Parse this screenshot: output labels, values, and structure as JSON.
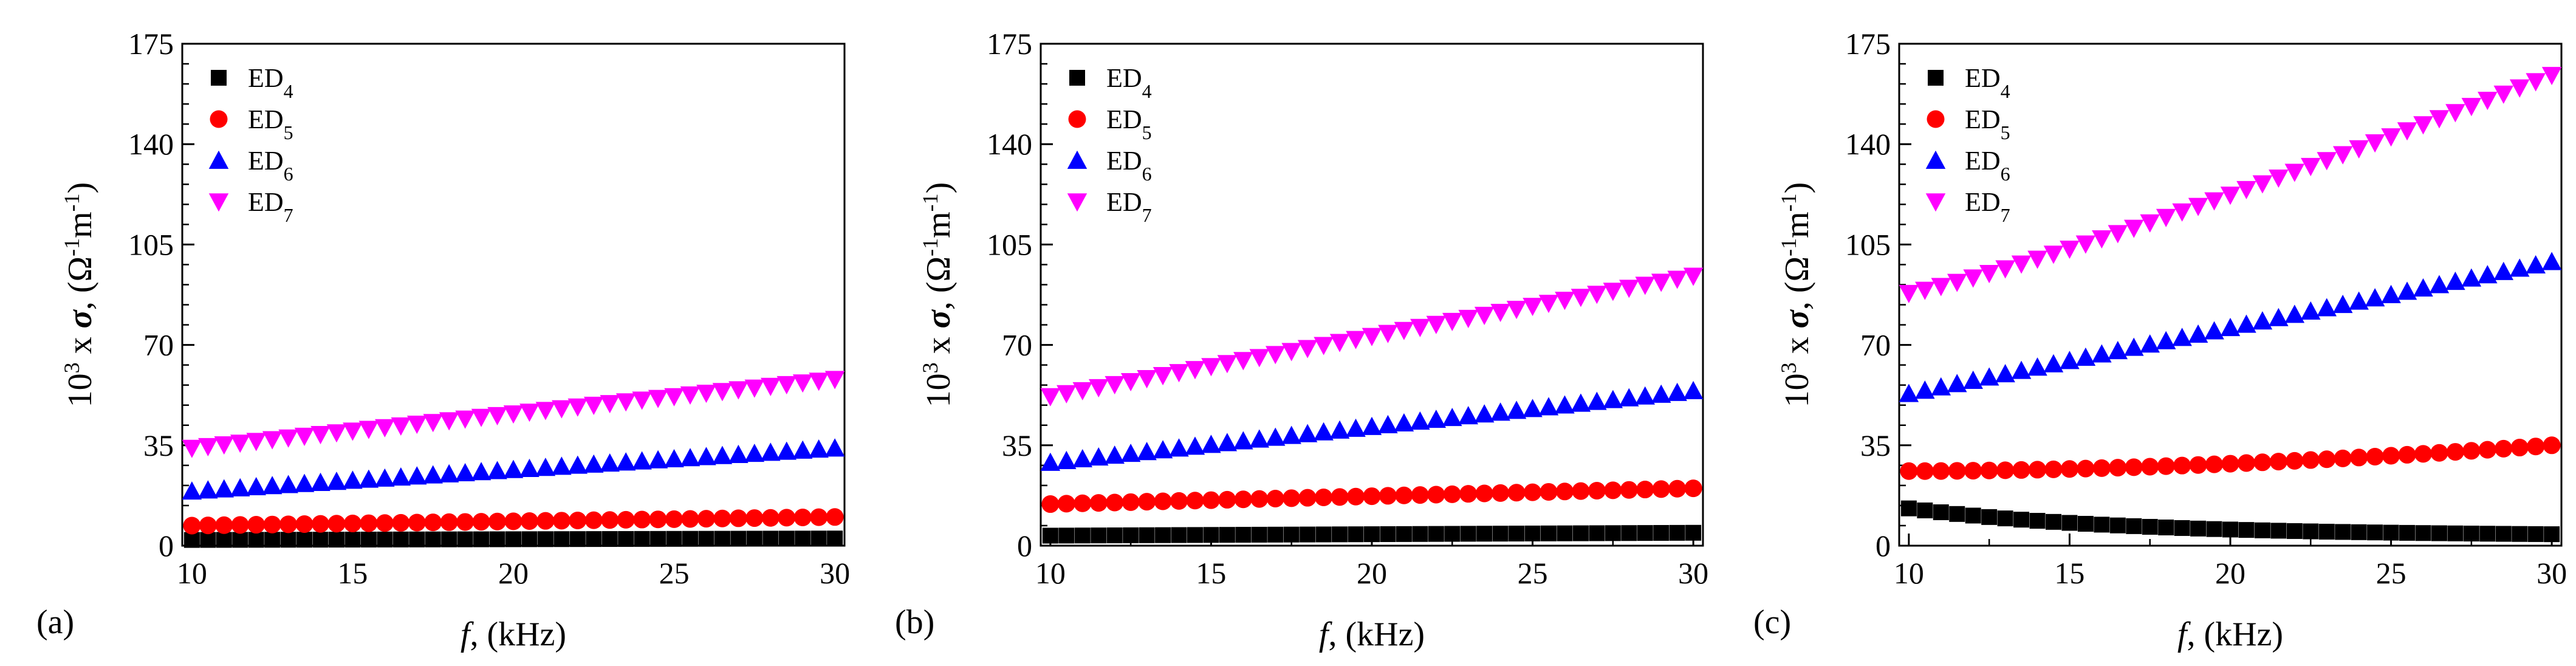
{
  "chart_data": [
    {
      "type": "scatter",
      "panel_label": "(a)",
      "title": "",
      "xlabel": {
        "symbol": "f",
        "rest": ", (kHz)"
      },
      "ylabel": {
        "prefix": "10",
        "exp": "3",
        "times": " x ",
        "symbol": "σ",
        "units_pre": ", (Ω",
        "units_mid": "m",
        "units_post": ")",
        "neg": "-1"
      },
      "xlim": [
        9.7,
        30.3
      ],
      "ylim": [
        0,
        175
      ],
      "xticks": [
        10,
        15,
        20,
        25,
        30
      ],
      "yticks": [
        0,
        35,
        70,
        105,
        140,
        175
      ],
      "legend_position": "top-left",
      "x_range": [
        10,
        30
      ],
      "n_points": 41,
      "series": [
        {
          "name": "ED",
          "sub": "4",
          "marker": "square",
          "color": "#000000",
          "start": 2.0,
          "end": 2.5
        },
        {
          "name": "ED",
          "sub": "5",
          "marker": "circle",
          "color": "#ff0000",
          "start": 7.0,
          "end": 10.0
        },
        {
          "name": "ED",
          "sub": "6",
          "marker": "triangle-up",
          "color": "#0000ff",
          "start": 19.0,
          "end": 34.0
        },
        {
          "name": "ED",
          "sub": "7",
          "marker": "triangle-down",
          "color": "#ff00ff",
          "start": 34.0,
          "end": 58.0
        }
      ]
    },
    {
      "type": "scatter",
      "panel_label": "(b)",
      "title": "",
      "xlabel": {
        "symbol": "f",
        "rest": ", (kHz)"
      },
      "ylabel": {
        "prefix": "10",
        "exp": "3",
        "times": " x ",
        "symbol": "σ",
        "units_pre": ", (Ω",
        "units_mid": "m",
        "units_post": ")",
        "neg": "-1"
      },
      "xlim": [
        9.7,
        30.3
      ],
      "ylim": [
        0,
        175
      ],
      "xticks": [
        10,
        15,
        20,
        25,
        30
      ],
      "yticks": [
        0,
        35,
        70,
        105,
        140,
        175
      ],
      "legend_position": "top-left",
      "x_range": [
        10,
        30
      ],
      "n_points": 41,
      "series": [
        {
          "name": "ED",
          "sub": "4",
          "marker": "square",
          "color": "#000000",
          "start": 3.5,
          "end": 4.5
        },
        {
          "name": "ED",
          "sub": "5",
          "marker": "circle",
          "color": "#ff0000",
          "start": 14.5,
          "end": 20.0
        },
        {
          "name": "ED",
          "sub": "6",
          "marker": "triangle-up",
          "color": "#0000ff",
          "start": 29.0,
          "end": 54.0
        },
        {
          "name": "ED",
          "sub": "7",
          "marker": "triangle-down",
          "color": "#ff00ff",
          "start": 52.0,
          "end": 94.0
        }
      ]
    },
    {
      "type": "scatter",
      "panel_label": "(c)",
      "title": "",
      "xlabel": {
        "symbol": "f",
        "rest": ", (kHz)"
      },
      "ylabel": {
        "prefix": "10",
        "exp": "3",
        "times": " x ",
        "symbol": "σ",
        "units_pre": ", (Ω",
        "units_mid": "m",
        "units_post": ")",
        "neg": "-1"
      },
      "xlim": [
        9.7,
        30.3
      ],
      "ylim": [
        0,
        175
      ],
      "xticks": [
        10,
        15,
        20,
        25,
        30
      ],
      "yticks": [
        0,
        35,
        70,
        105,
        140,
        175
      ],
      "legend_position": "top-left",
      "x_range": [
        10,
        30
      ],
      "n_points": 41,
      "series": [
        {
          "name": "ED",
          "sub": "4",
          "marker": "square",
          "color": "#000000",
          "start": 13.0,
          "end": 4.0,
          "shape": "decay"
        },
        {
          "name": "ED",
          "sub": "5",
          "marker": "circle",
          "color": "#ff0000",
          "start": 26.0,
          "end": 35.0,
          "shape": "convex"
        },
        {
          "name": "ED",
          "sub": "6",
          "marker": "triangle-up",
          "color": "#0000ff",
          "start": 53.0,
          "end": 99.0
        },
        {
          "name": "ED",
          "sub": "7",
          "marker": "triangle-down",
          "color": "#ff00ff",
          "start": 88.0,
          "end": 164.0,
          "shape": "convex-mild"
        }
      ]
    }
  ]
}
